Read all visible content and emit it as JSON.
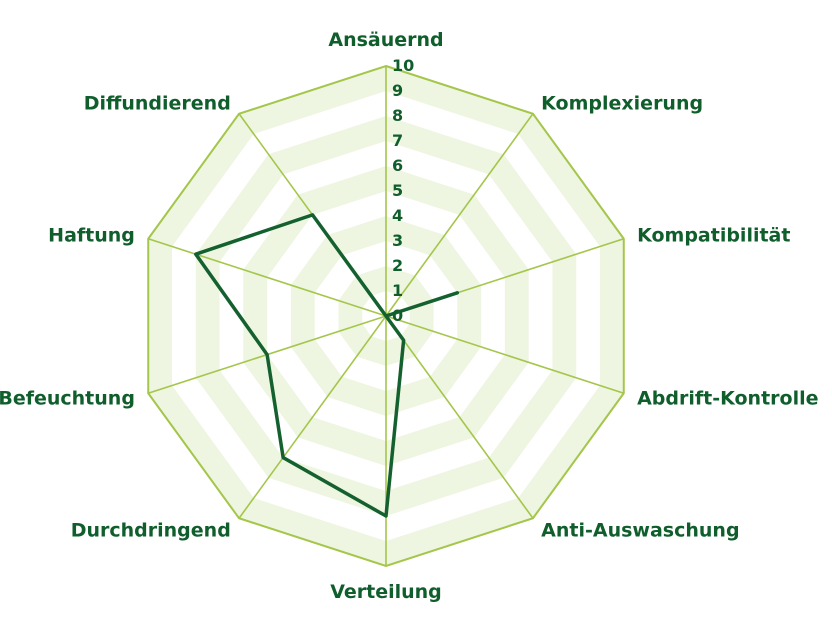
{
  "chart_data": {
    "type": "radar",
    "title": "",
    "axes": [
      "Ansäuernd",
      "Komplexierung",
      "Kompatibilität",
      "Abdrift-Kontrolle",
      "Anti-Auswaschung",
      "Verteilung",
      "Durchdringend",
      "Befeuchtung",
      "Haftung",
      "Diffundierend"
    ],
    "ticks": [
      "0",
      "1",
      "2",
      "3",
      "4",
      "5",
      "6",
      "7",
      "8",
      "9",
      "10"
    ],
    "range": [
      0,
      10
    ],
    "series": [
      {
        "values": [
          0,
          0,
          3,
          0,
          1.2,
          8,
          7,
          5,
          8,
          5
        ],
        "color": "#14612f"
      }
    ],
    "colors": {
      "grid": "#a4c64a",
      "band": "#eef5e1",
      "label": "#0f5e2c"
    },
    "grid": true,
    "legend": "none"
  }
}
